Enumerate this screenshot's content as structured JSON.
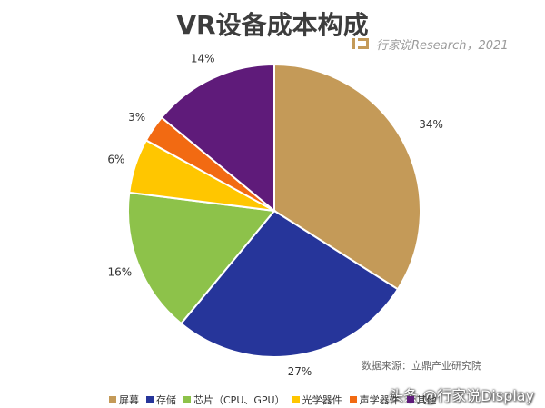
{
  "title": "VR设备成本构成",
  "brand": {
    "text": "行家说Research，2021"
  },
  "source_note": "数据来源：立鼎产业研究院",
  "watermark": "头条 @行家说Display",
  "chart_data": {
    "type": "pie",
    "title": "VR设备成本构成",
    "legend_position": "bottom",
    "slices": [
      {
        "label": "屏幕",
        "value": 34,
        "value_label": "34%",
        "color": "#c49a58"
      },
      {
        "label": "存储",
        "value": 27,
        "value_label": "27%",
        "color": "#26359a"
      },
      {
        "label": "芯片（CPU、GPU）",
        "value": 16,
        "value_label": "16%",
        "color": "#8dc24a"
      },
      {
        "label": "光学器件",
        "value": 6,
        "value_label": "6%",
        "color": "#ffc600"
      },
      {
        "label": "声学器件",
        "value": 3,
        "value_label": "3%",
        "color": "#f26a12"
      },
      {
        "label": "其他",
        "value": 14,
        "value_label": "14%",
        "color": "#5f1b7a"
      }
    ]
  }
}
